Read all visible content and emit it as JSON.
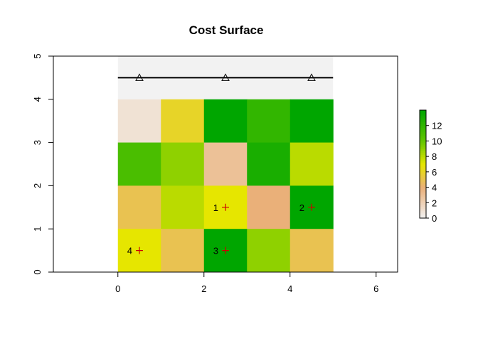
{
  "chart_data": {
    "type": "heatmap",
    "title": "Cost Surface",
    "xlabel": "",
    "ylabel": "",
    "xlim": [
      -1.5,
      6.5
    ],
    "ylim": [
      0,
      5
    ],
    "x_ticks": [
      0,
      2,
      4,
      6
    ],
    "y_ticks": [
      0,
      1,
      2,
      3,
      4,
      5
    ],
    "grid": false,
    "raster": {
      "origin": [
        0,
        0
      ],
      "cell_size": 1,
      "ncols": 5,
      "nrows": 4,
      "rows_top_to_bottom": [
        [
          1,
          6,
          14,
          12,
          14
        ],
        [
          11,
          9,
          3,
          13,
          8
        ],
        [
          5,
          8,
          7,
          4,
          14
        ],
        [
          7,
          5,
          14,
          9,
          5
        ]
      ]
    },
    "na_band": {
      "x": [
        0,
        5
      ],
      "y": [
        4,
        5
      ],
      "color": "#f2f2f2"
    },
    "line": {
      "points": [
        [
          0,
          4.5
        ],
        [
          5,
          4.5
        ]
      ],
      "color": "#000000",
      "vertices": [
        [
          0.5,
          4.5
        ],
        [
          2.5,
          4.5
        ],
        [
          4.5,
          4.5
        ]
      ],
      "vertex_marker": "triangle-open"
    },
    "points": [
      {
        "label": "1",
        "x": 2.5,
        "y": 1.5
      },
      {
        "label": "2",
        "x": 4.5,
        "y": 1.5
      },
      {
        "label": "3",
        "x": 2.5,
        "y": 0.5
      },
      {
        "label": "4",
        "x": 0.5,
        "y": 0.5
      }
    ],
    "point_marker": "plus",
    "point_color": "#cc0000",
    "legend": {
      "placement": "right",
      "min": 0,
      "max": 14,
      "ticks": [
        0,
        2,
        4,
        6,
        8,
        10,
        12
      ],
      "color_stops": [
        {
          "value": 0,
          "color": "#f2f2f2"
        },
        {
          "value": 4,
          "color": "#eab079"
        },
        {
          "value": 7,
          "color": "#e6e600"
        },
        {
          "value": 10,
          "color": "#63c600"
        },
        {
          "value": 14,
          "color": "#00a600"
        }
      ]
    }
  }
}
